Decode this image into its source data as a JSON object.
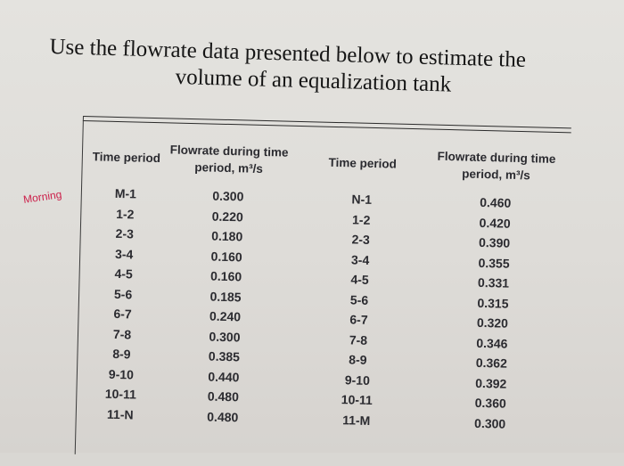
{
  "question": {
    "line1": "Use the flowrate data presented below to estimate the",
    "line2": "volume of an equalization tank"
  },
  "table": {
    "headers": [
      "Time period",
      "Flowrate during time period, m³/s",
      "Time period",
      "Flowrate during time period, m³/s"
    ],
    "rows": [
      [
        "M-1",
        "0.300",
        "N-1",
        "0.460"
      ],
      [
        "1-2",
        "0.220",
        "1-2",
        "0.420"
      ],
      [
        "2-3",
        "0.180",
        "2-3",
        "0.390"
      ],
      [
        "3-4",
        "0.160",
        "3-4",
        "0.355"
      ],
      [
        "4-5",
        "0.160",
        "4-5",
        "0.331"
      ],
      [
        "5-6",
        "0.185",
        "5-6",
        "0.315"
      ],
      [
        "6-7",
        "0.240",
        "6-7",
        "0.320"
      ],
      [
        "7-8",
        "0.300",
        "7-8",
        "0.346"
      ],
      [
        "8-9",
        "0.385",
        "8-9",
        "0.362"
      ],
      [
        "9-10",
        "0.440",
        "9-10",
        "0.392"
      ],
      [
        "10-11",
        "0.480",
        "10-11",
        "0.360"
      ],
      [
        "11-N",
        "0.480",
        "11-M",
        "0.300"
      ]
    ]
  },
  "annotations": {
    "left": "Morning",
    "color": "#cc1f4a"
  }
}
